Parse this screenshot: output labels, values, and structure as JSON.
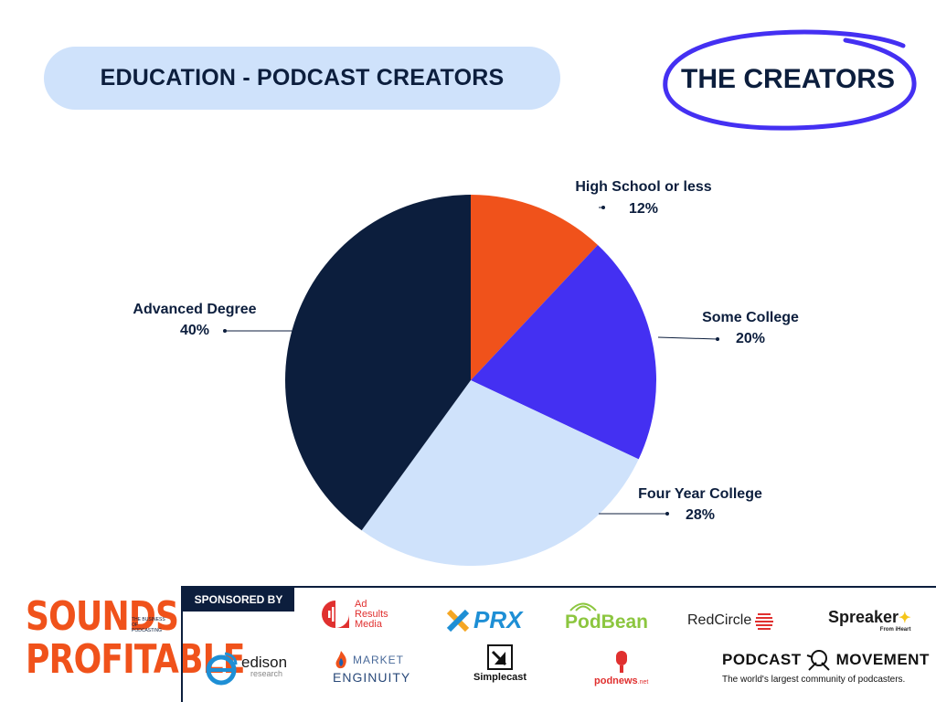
{
  "header": {
    "title": "EDUCATION - PODCAST CREATORS",
    "badge": "THE CREATORS"
  },
  "colors": {
    "navy": "#0c1e3d",
    "orange": "#f0521b",
    "purple": "#4430f2",
    "light_blue": "#cfe2fb"
  },
  "chart_data": {
    "type": "pie",
    "categories": [
      "High School or less",
      "Some College",
      "Four Year College",
      "Advanced Degree"
    ],
    "values": [
      12,
      20,
      28,
      40
    ],
    "value_labels": [
      "12%",
      "20%",
      "28%",
      "40%"
    ],
    "colors": [
      "#f0521b",
      "#4430f2",
      "#cfe2fb",
      "#0c1e3d"
    ],
    "start_angle": "12 o'clock, clockwise",
    "legend": "none (callout labels)"
  },
  "footer": {
    "logo_line1": "SOUNDS",
    "logo_line2": "PROFITABLE",
    "logo_tagline": "THE BUSINESS OF PODCASTING",
    "sponsored_label": "SPONSORED BY",
    "sponsors": [
      {
        "name": "Ad Results Media",
        "line1": "Ad",
        "line2": "Results",
        "line3": "Media",
        "icon": "waveform-icon"
      },
      {
        "name": "PRX",
        "text": "PRX",
        "icon": "x-mark-icon"
      },
      {
        "name": "PodBean",
        "text": "PodBean",
        "icon": "signal-icon"
      },
      {
        "name": "RedCircle",
        "text": "RedCircle",
        "icon": "stripe-circle-icon"
      },
      {
        "name": "Spreaker",
        "text": "Spreaker",
        "sub": "From iHeart",
        "icon": "star-icon"
      },
      {
        "name": "edison research",
        "text": "edison",
        "sub": "research",
        "icon": "e-swoosh-icon"
      },
      {
        "name": "Market Enginuity",
        "line1": "MARKET",
        "line2": "ENGINUITY",
        "icon": "flame-icon"
      },
      {
        "name": "Simplecast",
        "text": "Simplecast",
        "icon": "square-slash-icon"
      },
      {
        "name": "podnews",
        "text": "podnews",
        "sub": ".net",
        "icon": "mic-icon"
      },
      {
        "name": "Podcast Movement",
        "line1": "PODCAST",
        "line2": "MOVEMENT",
        "sub": "The world's largest community of podcasters.",
        "icon": "astronaut-icon"
      }
    ]
  }
}
